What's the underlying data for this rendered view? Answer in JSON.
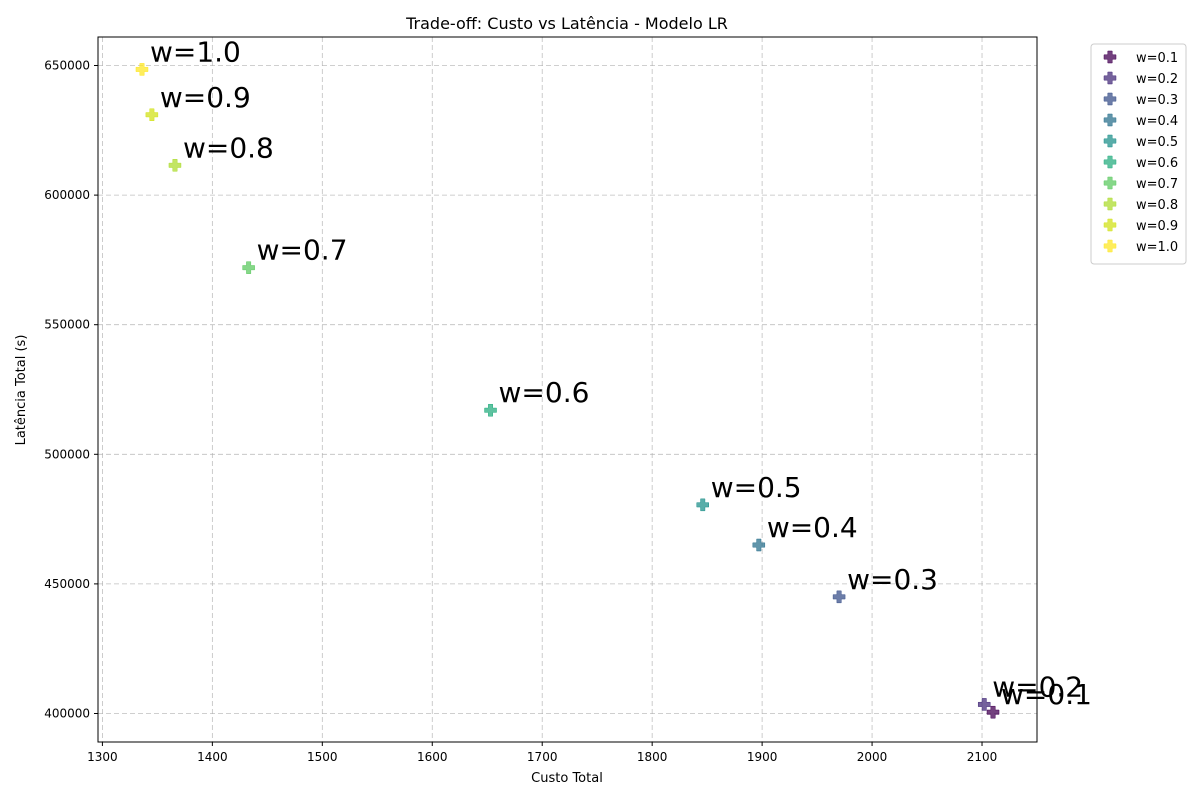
{
  "chart_data": {
    "type": "scatter",
    "title": "Trade-off: Custo vs Latência - Modelo LR",
    "xlabel": "Custo Total",
    "ylabel": "Latência Total (s)",
    "xlim": [
      1296,
      2150
    ],
    "ylim": [
      389000,
      661000
    ],
    "xticks": [
      1300,
      1400,
      1500,
      1600,
      1700,
      1800,
      1900,
      2000,
      2100
    ],
    "yticks": [
      400000,
      450000,
      500000,
      550000,
      600000,
      650000
    ],
    "grid": true,
    "legend_position": "outside-top-right",
    "marker": "plus",
    "series": [
      {
        "name": "w=0.1",
        "color": "#440154",
        "x": [
          2110
        ],
        "y": [
          400500
        ],
        "annotation": "w=0.1"
      },
      {
        "name": "w=0.2",
        "color": "#472d7b",
        "x": [
          2102
        ],
        "y": [
          403500
        ],
        "annotation": "w=0.2"
      },
      {
        "name": "w=0.3",
        "color": "#3b528b",
        "x": [
          1970
        ],
        "y": [
          445000
        ],
        "annotation": "w=0.3"
      },
      {
        "name": "w=0.4",
        "color": "#2c728e",
        "x": [
          1897
        ],
        "y": [
          465000
        ],
        "annotation": "w=0.4"
      },
      {
        "name": "w=0.5",
        "color": "#21918c",
        "x": [
          1846
        ],
        "y": [
          480500
        ],
        "annotation": "w=0.5"
      },
      {
        "name": "w=0.6",
        "color": "#28ae80",
        "x": [
          1653
        ],
        "y": [
          517000
        ],
        "annotation": "w=0.6"
      },
      {
        "name": "w=0.7",
        "color": "#5ec962",
        "x": [
          1433
        ],
        "y": [
          572000
        ],
        "annotation": "w=0.7"
      },
      {
        "name": "w=0.8",
        "color": "#addc30",
        "x": [
          1366
        ],
        "y": [
          611500
        ],
        "annotation": "w=0.8"
      },
      {
        "name": "w=0.9",
        "color": "#d2e21b",
        "x": [
          1345
        ],
        "y": [
          631000
        ],
        "annotation": "w=0.9"
      },
      {
        "name": "w=1.0",
        "color": "#fde725",
        "x": [
          1336
        ],
        "y": [
          648500
        ],
        "annotation": "w=1.0"
      }
    ]
  }
}
